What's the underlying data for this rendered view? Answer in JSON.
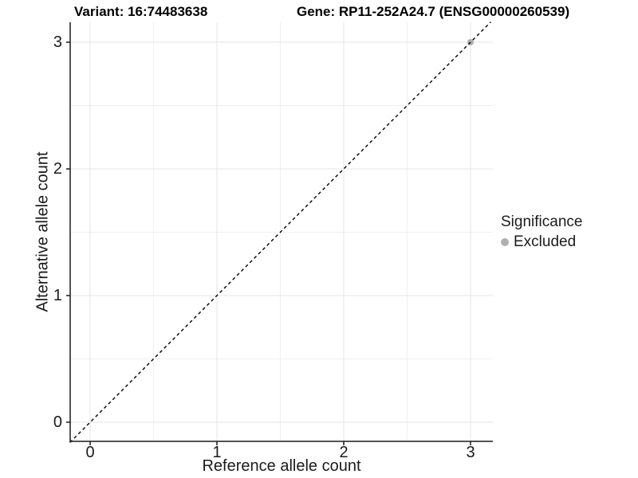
{
  "chart_data": {
    "type": "scatter",
    "title_left": "Variant: 16:74483638",
    "title_right": "Gene: RP11-252A24.7 (ENSG00000260539)",
    "xlabel": "Reference allele count",
    "ylabel": "Alternative allele count",
    "xlim": [
      -0.16,
      3.18
    ],
    "ylim": [
      -0.16,
      3.18
    ],
    "x_ticks": [
      0,
      1,
      2,
      3
    ],
    "y_ticks": [
      0,
      1,
      2,
      3
    ],
    "x_minor_gridlines": [
      0.5,
      1.5,
      2.5
    ],
    "y_minor_gridlines": [
      0.5,
      1.5,
      2.5
    ],
    "grid": true,
    "series": [
      {
        "name": "Excluded",
        "color": "#b0b0b0",
        "points": [
          {
            "x": 3,
            "y": 3
          }
        ]
      }
    ],
    "identity_line": {
      "label": "y = x",
      "style": "dashed",
      "color": "#000000",
      "x_from": -0.16,
      "y_from": -0.16,
      "x_to": 3.16,
      "y_to": 3.16
    },
    "legend": {
      "title": "Significance",
      "position": "right",
      "items": [
        {
          "label": "Excluded",
          "color": "#b0b0b0"
        }
      ]
    },
    "colors": {
      "major_grid": "#e5e5e5",
      "minor_grid": "#f0f0f0",
      "axis": "#1a1a1a",
      "panel_background": "#ffffff"
    }
  }
}
